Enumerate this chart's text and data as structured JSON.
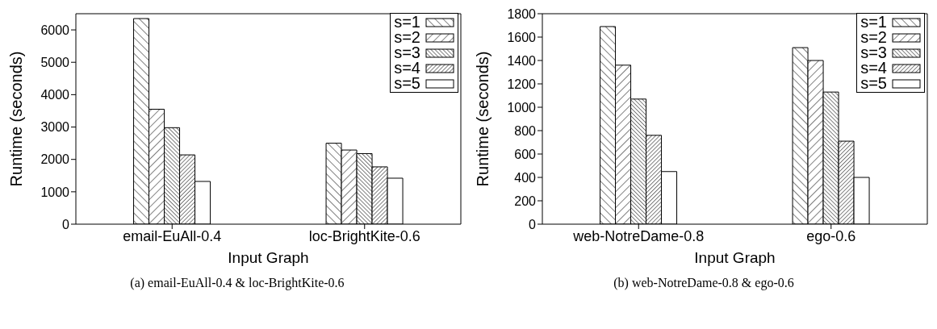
{
  "chart_data": [
    {
      "type": "bar",
      "xlabel": "Input Graph",
      "ylabel": "Runtime (seconds)",
      "categories": [
        "email-EuAll-0.4",
        "loc-BrightKite-0.6"
      ],
      "series": [
        {
          "name": "s=1",
          "color": "#000000",
          "values": [
            6350,
            2500
          ]
        },
        {
          "name": "s=2",
          "color": "#000000",
          "values": [
            3550,
            2290
          ]
        },
        {
          "name": "s=3",
          "color": "#000000",
          "values": [
            2980,
            2180
          ]
        },
        {
          "name": "s=4",
          "color": "#000000",
          "values": [
            2140,
            1770
          ]
        },
        {
          "name": "s=5",
          "color": "#000000",
          "values": [
            1320,
            1420
          ]
        }
      ],
      "ylim": [
        0,
        6500
      ],
      "yticks": [
        0,
        1000,
        2000,
        3000,
        4000,
        5000,
        6000
      ],
      "grid": false,
      "legend": "top right",
      "annotations": [
        "(a) email-EuAll-0.4 & loc-BrightKite-0.6"
      ]
    },
    {
      "type": "bar",
      "xlabel": "Input Graph",
      "ylabel": "Runtime (seconds)",
      "categories": [
        "web-NotreDame-0.8",
        "ego-0.6"
      ],
      "series": [
        {
          "name": "s=1",
          "color": "#000000",
          "values": [
            1690,
            1510
          ]
        },
        {
          "name": "s=2",
          "color": "#000000",
          "values": [
            1360,
            1400
          ]
        },
        {
          "name": "s=3",
          "color": "#000000",
          "values": [
            1070,
            1130
          ]
        },
        {
          "name": "s=4",
          "color": "#000000",
          "values": [
            760,
            710
          ]
        },
        {
          "name": "s=5",
          "color": "#000000",
          "values": [
            450,
            400
          ]
        }
      ],
      "ylim": [
        0,
        1800
      ],
      "yticks": [
        0,
        200,
        400,
        600,
        800,
        1000,
        1200,
        1400,
        1600,
        1800
      ],
      "grid": false,
      "legend": "top right",
      "annotations": [
        "(b) web-NotreDame-0.8 & ego-0.6"
      ]
    }
  ]
}
